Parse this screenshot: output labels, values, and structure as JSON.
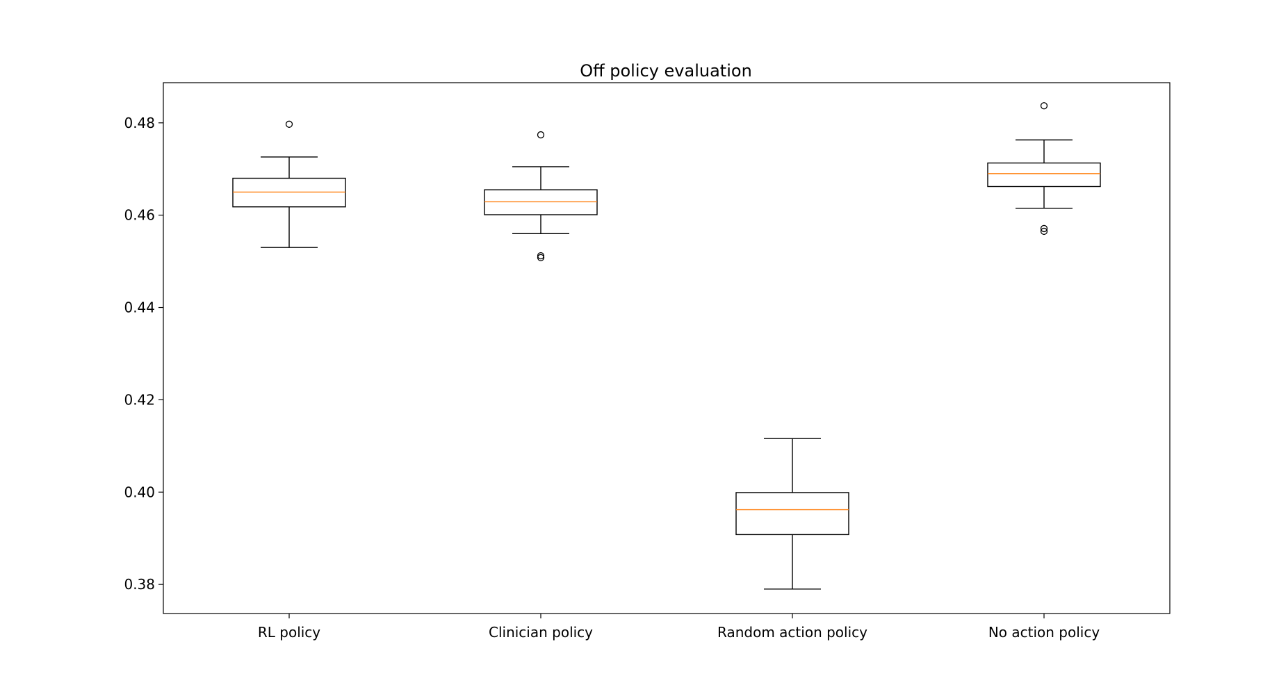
{
  "chart_data": {
    "type": "boxplot",
    "title": "Off policy evaluation",
    "xlabel": "",
    "ylabel": "",
    "categories": [
      "RL policy",
      "Clinician policy",
      "Random action policy",
      "No action policy"
    ],
    "boxes": [
      {
        "category": "RL policy",
        "whisker_low": 0.453,
        "q1": 0.4618,
        "median": 0.465,
        "q3": 0.468,
        "whisker_high": 0.4726,
        "outliers": [
          0.4797
        ]
      },
      {
        "category": "Clinician policy",
        "whisker_low": 0.456,
        "q1": 0.4601,
        "median": 0.4629,
        "q3": 0.4655,
        "whisker_high": 0.4705,
        "outliers": [
          0.4774,
          0.4512,
          0.4508
        ]
      },
      {
        "category": "Random action policy",
        "whisker_low": 0.379,
        "q1": 0.3908,
        "median": 0.3962,
        "q3": 0.3999,
        "whisker_high": 0.4116,
        "outliers": []
      },
      {
        "category": "No action policy",
        "whisker_low": 0.4615,
        "q1": 0.4662,
        "median": 0.469,
        "q3": 0.4713,
        "whisker_high": 0.4763,
        "outliers": [
          0.4837,
          0.4571,
          0.4565
        ]
      }
    ],
    "y_ticks": [
      0.38,
      0.4,
      0.42,
      0.44,
      0.46,
      0.48
    ],
    "y_tick_labels": [
      "0.38",
      "0.40",
      "0.42",
      "0.44",
      "0.46",
      "0.48"
    ],
    "ylim": [
      0.3737,
      0.4887
    ],
    "grid": false,
    "colors": {
      "box": "#000000",
      "median": "#ff7f0e",
      "outlier": "#000000"
    }
  }
}
